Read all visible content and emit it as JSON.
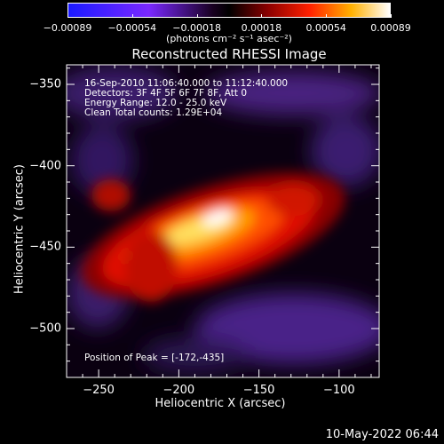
{
  "chart_data": {
    "type": "heatmap",
    "title": "Reconstructed RHESSI Image",
    "xlabel": "Heliocentric X (arcsec)",
    "ylabel": "Heliocentric Y (arcsec)",
    "xlim": [
      -270,
      -75
    ],
    "ylim": [
      -530,
      -338
    ],
    "x_ticks": [
      -250,
      -200,
      -150,
      -100
    ],
    "y_ticks": [
      -350,
      -400,
      -450,
      -500
    ],
    "colorbar": {
      "units": "(photons cm⁻² s⁻¹ asec⁻²)",
      "range": [
        -0.00089,
        0.00089
      ],
      "ticks": [
        "-0.00089",
        "-0.00054",
        "-0.00018",
        "0.00018",
        "0.00054",
        "0.00089"
      ]
    },
    "annotations": [
      "16-Sep-2010 11:06:40.000 to 11:12:40.000",
      "Detectors: 3F 4F 5F 6F 7F 8F, Att 0",
      "Energy Range: 12.0 - 25.0 keV",
      "Clean     Total counts: 1.29E+04"
    ],
    "peak_text": "Position of Peak = [-172,-435]",
    "peak": {
      "x": -172,
      "y": -435
    },
    "grid": false
  },
  "footer": {
    "timestamp": "10-May-2022 06:44"
  }
}
